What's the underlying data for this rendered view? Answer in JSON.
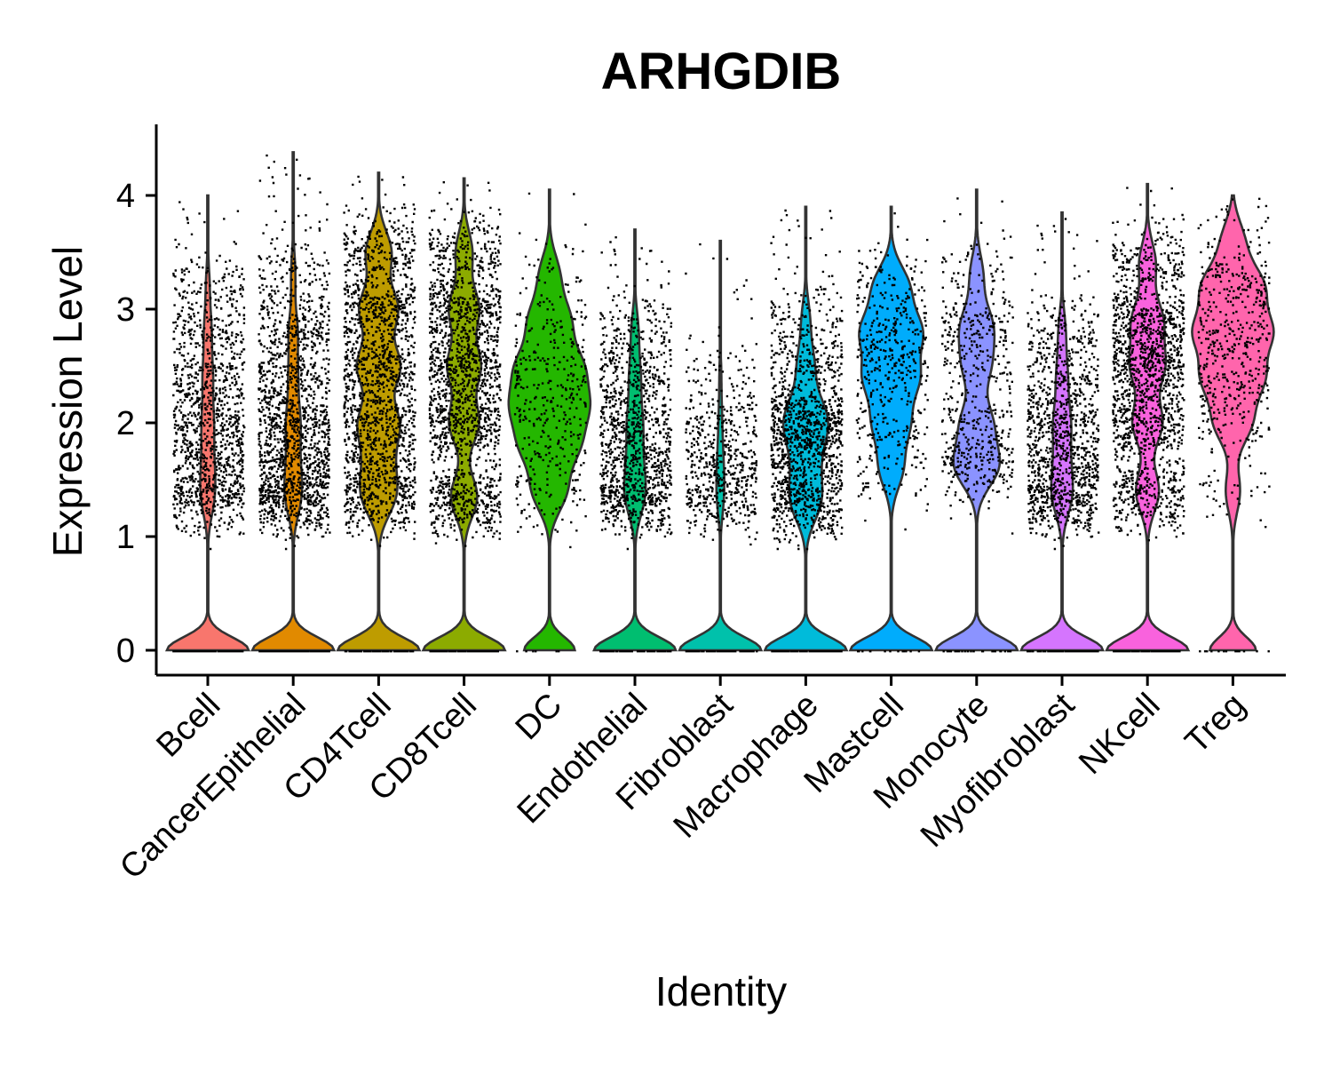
{
  "chart_data": {
    "type": "violin",
    "title": "ARHGDIB",
    "xlabel": "Identity",
    "ylabel": "Expression Level",
    "ylim": [
      -0.2,
      4.6
    ],
    "yticks": [
      0,
      1,
      2,
      3,
      4
    ],
    "grid": false,
    "legend": "none",
    "categories": [
      "Bcell",
      "CancerEpithelial",
      "CD4Tcell",
      "CD8Tcell",
      "DC",
      "Endothelial",
      "Fibroblast",
      "Macrophage",
      "Mastcell",
      "Monocyte",
      "Myofibroblast",
      "NKcell",
      "Treg"
    ],
    "colors": [
      "#F8766D",
      "#E18A00",
      "#BE9C00",
      "#8CAB00",
      "#24B700",
      "#00BE70",
      "#00C1AB",
      "#00BBDA",
      "#00ACFC",
      "#8B93FF",
      "#D575FE",
      "#F962DD",
      "#FF65AC"
    ],
    "series": [
      {
        "name": "Bcell",
        "max": 4.0,
        "zero_fraction": 0.55,
        "point_count": 1400,
        "modes": [
          {
            "y": 1.35,
            "w": 1.0
          },
          {
            "y": 1.65,
            "w": 0.8
          },
          {
            "y": 2.0,
            "w": 0.9
          },
          {
            "y": 2.4,
            "w": 0.8
          },
          {
            "y": 2.8,
            "w": 0.6
          },
          {
            "y": 3.2,
            "w": 0.3
          }
        ]
      },
      {
        "name": "CancerEpithelial",
        "max": 4.38,
        "zero_fraction": 0.5,
        "point_count": 1800,
        "modes": [
          {
            "y": 1.35,
            "w": 1.0
          },
          {
            "y": 1.65,
            "w": 0.7
          },
          {
            "y": 2.0,
            "w": 0.9
          },
          {
            "y": 2.4,
            "w": 0.6
          },
          {
            "y": 2.8,
            "w": 0.6
          },
          {
            "y": 3.3,
            "w": 0.3
          }
        ]
      },
      {
        "name": "CD4Tcell",
        "max": 4.2,
        "zero_fraction": 0.25,
        "point_count": 3200,
        "modes": [
          {
            "y": 1.35,
            "w": 0.7
          },
          {
            "y": 1.65,
            "w": 0.5
          },
          {
            "y": 2.0,
            "w": 0.9
          },
          {
            "y": 2.5,
            "w": 1.0
          },
          {
            "y": 3.0,
            "w": 0.9
          },
          {
            "y": 3.5,
            "w": 0.6
          }
        ]
      },
      {
        "name": "CD8Tcell",
        "max": 4.15,
        "zero_fraction": 0.3,
        "point_count": 2800,
        "modes": [
          {
            "y": 1.35,
            "w": 0.8
          },
          {
            "y": 2.0,
            "w": 0.9
          },
          {
            "y": 2.5,
            "w": 1.0
          },
          {
            "y": 3.0,
            "w": 0.9
          },
          {
            "y": 3.5,
            "w": 0.5
          }
        ]
      },
      {
        "name": "DC",
        "max": 4.05,
        "zero_fraction": 0.12,
        "point_count": 420,
        "modes": [
          {
            "y": 1.4,
            "w": 0.5
          },
          {
            "y": 1.8,
            "w": 0.8
          },
          {
            "y": 2.15,
            "w": 1.0
          },
          {
            "y": 2.5,
            "w": 0.9
          },
          {
            "y": 2.9,
            "w": 0.6
          },
          {
            "y": 3.3,
            "w": 0.3
          }
        ]
      },
      {
        "name": "Endothelial",
        "max": 3.7,
        "zero_fraction": 0.45,
        "point_count": 1300,
        "modes": [
          {
            "y": 1.35,
            "w": 1.0
          },
          {
            "y": 1.65,
            "w": 0.7
          },
          {
            "y": 2.0,
            "w": 0.8
          },
          {
            "y": 2.4,
            "w": 0.6
          },
          {
            "y": 2.8,
            "w": 0.4
          }
        ]
      },
      {
        "name": "Fibroblast",
        "max": 3.6,
        "zero_fraction": 0.7,
        "point_count": 700,
        "modes": [
          {
            "y": 1.35,
            "w": 1.0
          },
          {
            "y": 1.65,
            "w": 0.8
          },
          {
            "y": 2.0,
            "w": 0.5
          },
          {
            "y": 2.4,
            "w": 0.3
          }
        ]
      },
      {
        "name": "Macrophage",
        "max": 3.9,
        "zero_fraction": 0.35,
        "point_count": 1500,
        "modes": [
          {
            "y": 1.3,
            "w": 1.0
          },
          {
            "y": 1.6,
            "w": 0.7
          },
          {
            "y": 1.9,
            "w": 0.9
          },
          {
            "y": 2.1,
            "w": 1.0
          },
          {
            "y": 2.5,
            "w": 0.6
          },
          {
            "y": 2.9,
            "w": 0.3
          }
        ]
      },
      {
        "name": "Mastcell",
        "max": 3.9,
        "zero_fraction": 0.2,
        "point_count": 500,
        "modes": [
          {
            "y": 1.6,
            "w": 0.4
          },
          {
            "y": 2.0,
            "w": 0.6
          },
          {
            "y": 2.4,
            "w": 0.9
          },
          {
            "y": 2.8,
            "w": 1.0
          },
          {
            "y": 3.2,
            "w": 0.6
          }
        ]
      },
      {
        "name": "Monocyte",
        "max": 4.05,
        "zero_fraction": 0.25,
        "point_count": 600,
        "modes": [
          {
            "y": 1.62,
            "w": 1.0
          },
          {
            "y": 2.0,
            "w": 0.7
          },
          {
            "y": 2.5,
            "w": 0.6
          },
          {
            "y": 2.85,
            "w": 0.7
          },
          {
            "y": 3.3,
            "w": 0.3
          }
        ]
      },
      {
        "name": "Myofibroblast",
        "max": 3.85,
        "zero_fraction": 0.45,
        "point_count": 1300,
        "modes": [
          {
            "y": 1.35,
            "w": 1.0
          },
          {
            "y": 1.65,
            "w": 0.7
          },
          {
            "y": 2.0,
            "w": 0.9
          },
          {
            "y": 2.4,
            "w": 0.6
          },
          {
            "y": 2.8,
            "w": 0.4
          }
        ]
      },
      {
        "name": "NKcell",
        "max": 4.1,
        "zero_fraction": 0.3,
        "point_count": 1700,
        "modes": [
          {
            "y": 1.4,
            "w": 0.7
          },
          {
            "y": 2.0,
            "w": 0.9
          },
          {
            "y": 2.5,
            "w": 1.0
          },
          {
            "y": 2.9,
            "w": 0.9
          },
          {
            "y": 3.4,
            "w": 0.5
          }
        ]
      },
      {
        "name": "Treg",
        "max": 4.0,
        "zero_fraction": 0.1,
        "point_count": 550,
        "modes": [
          {
            "y": 1.4,
            "w": 0.2
          },
          {
            "y": 2.0,
            "w": 0.5
          },
          {
            "y": 2.4,
            "w": 0.8
          },
          {
            "y": 2.8,
            "w": 1.0
          },
          {
            "y": 3.2,
            "w": 0.8
          },
          {
            "y": 3.6,
            "w": 0.3
          }
        ]
      }
    ]
  }
}
